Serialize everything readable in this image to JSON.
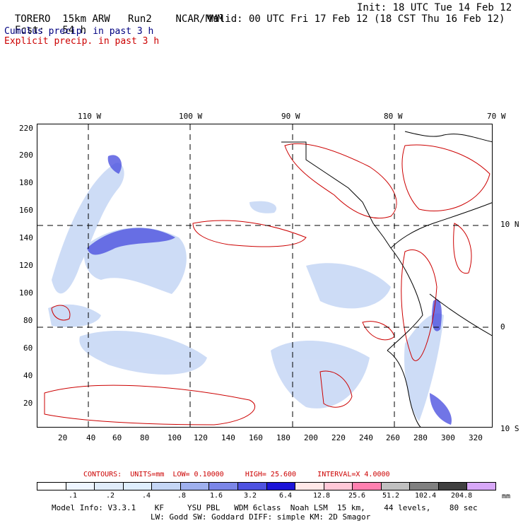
{
  "header": {
    "model_name": "TORERO",
    "resolution": "15km ARW",
    "run": "Run2",
    "org": "NCAR/MMM",
    "init": "Init: 18 UTC Tue 14 Feb 12",
    "fcst_label": "Fcst:",
    "fcst_value": "54 h",
    "valid": "Valid: 00 UTC Fri 17 Feb 12 (18 CST Thu 16 Feb 12)"
  },
  "legend": {
    "cumulus": "Cumulus precip. in past 3 h",
    "explicit": "Explicit precip. in past 3 h",
    "cumulus_color": "#000080",
    "explicit_color": "#cc0000"
  },
  "map": {
    "lon_labels": [
      "110 W",
      "100 W",
      "90 W",
      "80 W",
      "70 W"
    ],
    "lat_labels": [
      "10 N",
      "0",
      "10 S"
    ],
    "y_ticks": [
      "220",
      "200",
      "180",
      "160",
      "140",
      "120",
      "100",
      "80",
      "60",
      "40",
      "20"
    ],
    "x_ticks": [
      "20",
      "40",
      "60",
      "80",
      "100",
      "120",
      "140",
      "160",
      "180",
      "200",
      "220",
      "240",
      "260",
      "280",
      "300",
      "320"
    ]
  },
  "contours_text": {
    "label": "CONTOURS:",
    "units": "UNITS=mm",
    "low": "LOW= 0.10000",
    "high": "HIGH= 25.600",
    "interval": "INTERVAL=X 4.0000"
  },
  "colorbar": {
    "colors": [
      "#ffffff",
      "#eef5ff",
      "#e0ecfa",
      "#dfeefd",
      "#c5d6f5",
      "#9fb0ee",
      "#7b86e8",
      "#4e52e0",
      "#1c14d8",
      "#ffe8e8",
      "#ffc8d8",
      "#ff80b0",
      "#c0c0c0",
      "#808080",
      "#404040",
      "#d8a8f8"
    ],
    "labels": [
      ".1",
      ".2",
      ".4",
      ".8",
      "1.6",
      "3.2",
      "6.4",
      "12.8",
      "25.6",
      "51.2",
      "102.4",
      "204.8"
    ],
    "unit": "mm"
  },
  "footer": {
    "line1": "Model Info: V3.3.1    KF     YSU PBL   WDM 6class  Noah LSM  15 km,    44 levels,    80 sec",
    "line2": "LW: Godd SW: Goddard DIFF: simple KM: 2D Smagor"
  }
}
